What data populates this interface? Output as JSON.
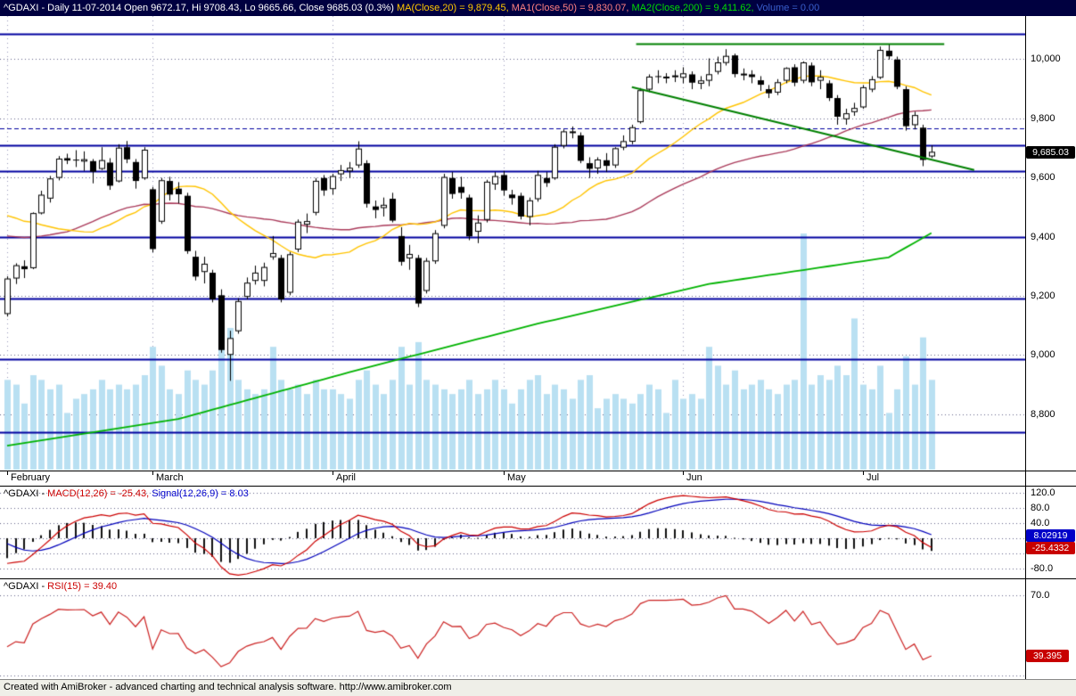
{
  "title_bar": {
    "quote": "^GDAXI - Daily 11-07-2014 Open 9672.17, Hi 9708.43, Lo 9665.66, Close 9685.03 (0.3%) ",
    "ma20": "MA(Close,20) = 9,879.45, ",
    "ma50": "MA1(Close,50) = 9,830.07, ",
    "ma200": "MA2(Close,200) = 9,411.62, ",
    "volume": "Volume = 0.00"
  },
  "title_colors": {
    "bg": "#000040",
    "quote": "#FFFFFF",
    "ma20": "#FFC800",
    "ma50": "#FF8080",
    "ma200": "#00DD00",
    "volume": "#3A5FCD"
  },
  "colors": {
    "up_candle": "#FFFFFF",
    "down_candle": "#000000",
    "ma20": "#FFC400",
    "ma50": "#AA3A5A",
    "ma200": "#00B300",
    "volume": "#B9E0F2",
    "sr_line": "#0000A0",
    "trendline": "#008000",
    "macd_line": "#CC0000",
    "signal_line": "#0000BB",
    "rsi_line": "#CC2222",
    "histogram": "#111111",
    "grid_dot": "#666688"
  },
  "macd_pane": {
    "title_sym": "^GDAXI - ",
    "title_macd": "MACD(12,26) = -25.43, ",
    "title_signal": "Signal(12,26,9) = 8.03",
    "badge_signal": "8.02919",
    "badge_macd": "-25.4332"
  },
  "rsi_pane": {
    "title_sym": "^GDAXI - ",
    "title_rsi": "RSI(15) = 39.40",
    "badge": "39.395"
  },
  "price_badge": "9,685.03",
  "status_bar": {
    "text": "Created with AmiBroker - advanced charting and technical analysis software. http://www.amibroker.com"
  },
  "chart_data": {
    "type": "candlestick",
    "symbol": "^GDAXI",
    "interval": "Daily",
    "date": "11-07-2014",
    "last": {
      "open": 9672.17,
      "high": 9708.43,
      "low": 9665.66,
      "close": 9685.03,
      "change_pct": 0.3
    },
    "main_range": [
      10145,
      8610
    ],
    "y_axis_ticks": [
      [
        10000,
        "10,000"
      ],
      [
        9800,
        "9,800"
      ],
      [
        9600,
        "9,600"
      ],
      [
        9400,
        "9,400"
      ],
      [
        9200,
        "9,200"
      ],
      [
        9000,
        "9,000"
      ],
      [
        8800,
        "8,800"
      ]
    ],
    "x_axis_labels": [
      "February",
      "March",
      "April",
      "May",
      "Jun",
      "Jul"
    ],
    "support_resistance": [
      10085,
      9710,
      9620,
      9400,
      9190,
      8985,
      8740
    ],
    "dashed_level": 9765,
    "trendlines": [
      {
        "type": "horizontal",
        "price": 10052,
        "from": 73.5,
        "to": 109.5
      },
      {
        "type": "descending",
        "p1": [
          73,
          9905
        ],
        "p2": [
          113,
          9625
        ]
      }
    ],
    "overlays": {
      "ma20_period": 20,
      "ma50_period": 50,
      "ma200_points": [
        [
          0,
          8694
        ],
        [
          20,
          8784
        ],
        [
          41,
          8950
        ],
        [
          62,
          9106
        ],
        [
          82,
          9240
        ],
        [
          103,
          9330
        ],
        [
          108,
          9412
        ]
      ]
    },
    "macd": {
      "fast": 12,
      "slow": 26,
      "signal": 9,
      "value": -25.4332,
      "signal_value": 8.02919,
      "range": [
        136,
        -108
      ],
      "grid_values": [
        120,
        80,
        40,
        0,
        -40,
        -80
      ],
      "ticks": [
        [
          120,
          "120.0"
        ],
        [
          80,
          "80.0"
        ],
        [
          40,
          "40.0"
        ],
        [
          -80,
          "-80.0"
        ]
      ]
    },
    "rsi": {
      "period": 15,
      "value": 39.395,
      "range": [
        78,
        28
      ],
      "grid_values": [
        70,
        30
      ],
      "ticks": [
        [
          70,
          "70.0"
        ]
      ]
    },
    "prefix_closes": [
      9114,
      9077,
      9017,
      8962,
      9018,
      9085,
      9182,
      9336,
      9362,
      9400,
      9411,
      9489,
      9589,
      9594,
      9552,
      9400,
      9435,
      9428,
      9506,
      9498,
      9473,
      9421,
      9510,
      9473,
      9506,
      9540,
      9715,
      9733,
      9794,
      9730,
      9731,
      9721,
      9631,
      9392,
      9349,
      9407,
      9337,
      9373,
      9306,
      9186,
      9127,
      9116
    ],
    "bars": [
      [
        "2014-02-06",
        9140,
        9266,
        9130,
        9257,
        95
      ],
      [
        "2014-02-07",
        9260,
        9310,
        9240,
        9302,
        90
      ],
      [
        "2014-02-10",
        9300,
        9320,
        9260,
        9290,
        70
      ],
      [
        "2014-02-11",
        9295,
        9482,
        9290,
        9478,
        100
      ],
      [
        "2014-02-12",
        9480,
        9555,
        9475,
        9540,
        95
      ],
      [
        "2014-02-13",
        9530,
        9605,
        9515,
        9595,
        85
      ],
      [
        "2014-02-14",
        9600,
        9672,
        9590,
        9662,
        90
      ],
      [
        "2014-02-17",
        9665,
        9680,
        9645,
        9657,
        60
      ],
      [
        "2014-02-18",
        9660,
        9692,
        9635,
        9659,
        75
      ],
      [
        "2014-02-19",
        9655,
        9688,
        9622,
        9660,
        80
      ],
      [
        "2014-02-20",
        9655,
        9662,
        9580,
        9619,
        85
      ],
      [
        "2014-02-21",
        9630,
        9702,
        9625,
        9657,
        95
      ],
      [
        "2014-02-24",
        9650,
        9665,
        9558,
        9572,
        85
      ],
      [
        "2014-02-25",
        9588,
        9712,
        9583,
        9699,
        90
      ],
      [
        "2014-02-26",
        9702,
        9723,
        9648,
        9661,
        85
      ],
      [
        "2014-02-27",
        9652,
        9662,
        9562,
        9588,
        90
      ],
      [
        "2014-02-28",
        9598,
        9702,
        9592,
        9692,
        100
      ],
      [
        "2014-03-03",
        9560,
        9568,
        9347,
        9358,
        130
      ],
      [
        "2014-03-04",
        9452,
        9598,
        9443,
        9589,
        110
      ],
      [
        "2014-03-05",
        9588,
        9602,
        9522,
        9542,
        85
      ],
      [
        "2014-03-06",
        9562,
        9584,
        9512,
        9543,
        80
      ],
      [
        "2014-03-07",
        9538,
        9548,
        9342,
        9351,
        105
      ],
      [
        "2014-03-10",
        9332,
        9352,
        9252,
        9265,
        95
      ],
      [
        "2014-03-11",
        9282,
        9332,
        9242,
        9307,
        90
      ],
      [
        "2014-03-12",
        9278,
        9288,
        9178,
        9188,
        105
      ],
      [
        "2014-03-13",
        9202,
        9222,
        9008,
        9017,
        140
      ],
      [
        "2014-03-14",
        9002,
        9082,
        8913,
        9056,
        150
      ],
      [
        "2014-03-17",
        9082,
        9192,
        9072,
        9181,
        95
      ],
      [
        "2014-03-18",
        9198,
        9262,
        9188,
        9243,
        85
      ],
      [
        "2014-03-19",
        9252,
        9302,
        9238,
        9277,
        80
      ],
      [
        "2014-03-20",
        9252,
        9312,
        9232,
        9296,
        85
      ],
      [
        "2014-03-21",
        9332,
        9402,
        9322,
        9343,
        130
      ],
      [
        "2014-03-24",
        9328,
        9338,
        9178,
        9188,
        95
      ],
      [
        "2014-03-25",
        9212,
        9348,
        9202,
        9339,
        85
      ],
      [
        "2014-03-26",
        9358,
        9458,
        9348,
        9449,
        90
      ],
      [
        "2014-03-27",
        9442,
        9478,
        9412,
        9451,
        80
      ],
      [
        "2014-03-28",
        9482,
        9598,
        9472,
        9587,
        95
      ],
      [
        "2014-03-31",
        9598,
        9608,
        9538,
        9556,
        85
      ],
      [
        "2014-04-01",
        9562,
        9612,
        9542,
        9603,
        85
      ],
      [
        "2014-04-02",
        9612,
        9642,
        9588,
        9623,
        80
      ],
      [
        "2014-04-03",
        9622,
        9652,
        9598,
        9631,
        75
      ],
      [
        "2014-04-04",
        9642,
        9722,
        9632,
        9696,
        95
      ],
      [
        "2014-04-07",
        9648,
        9658,
        9498,
        9511,
        105
      ],
      [
        "2014-04-08",
        9502,
        9522,
        9462,
        9490,
        90
      ],
      [
        "2014-04-09",
        9498,
        9532,
        9468,
        9506,
        80
      ],
      [
        "2014-04-10",
        9528,
        9548,
        9448,
        9454,
        95
      ],
      [
        "2014-04-11",
        9402,
        9432,
        9302,
        9315,
        130
      ],
      [
        "2014-04-14",
        9328,
        9372,
        9288,
        9340,
        90
      ],
      [
        "2014-04-15",
        9328,
        9338,
        9162,
        9174,
        135
      ],
      [
        "2014-04-16",
        9218,
        9328,
        9208,
        9317,
        95
      ],
      [
        "2014-04-17",
        9318,
        9422,
        9308,
        9410,
        90
      ],
      [
        "2014-04-22",
        9438,
        9612,
        9428,
        9600,
        85
      ],
      [
        "2014-04-23",
        9598,
        9618,
        9528,
        9544,
        80
      ],
      [
        "2014-04-24",
        9568,
        9602,
        9528,
        9548,
        85
      ],
      [
        "2014-04-25",
        9532,
        9542,
        9388,
        9401,
        95
      ],
      [
        "2014-04-28",
        9418,
        9472,
        9378,
        9446,
        80
      ],
      [
        "2014-04-29",
        9458,
        9592,
        9448,
        9584,
        85
      ],
      [
        "2014-04-30",
        9578,
        9618,
        9558,
        9603,
        95
      ],
      [
        "2014-05-02",
        9608,
        9622,
        9538,
        9556,
        85
      ],
      [
        "2014-05-05",
        9542,
        9558,
        9508,
        9530,
        70
      ],
      [
        "2014-05-06",
        9538,
        9548,
        9458,
        9468,
        85
      ],
      [
        "2014-05-07",
        9468,
        9532,
        9438,
        9521,
        95
      ],
      [
        "2014-05-08",
        9528,
        9622,
        9518,
        9607,
        100
      ],
      [
        "2014-05-09",
        9598,
        9618,
        9568,
        9581,
        80
      ],
      [
        "2014-05-12",
        9598,
        9712,
        9592,
        9702,
        90
      ],
      [
        "2014-05-13",
        9708,
        9762,
        9698,
        9754,
        85
      ],
      [
        "2014-05-14",
        9752,
        9772,
        9732,
        9754,
        75
      ],
      [
        "2014-05-15",
        9742,
        9752,
        9648,
        9656,
        95
      ],
      [
        "2014-05-16",
        9648,
        9668,
        9598,
        9629,
        100
      ],
      [
        "2014-05-19",
        9632,
        9668,
        9612,
        9659,
        65
      ],
      [
        "2014-05-20",
        9658,
        9682,
        9618,
        9639,
        75
      ],
      [
        "2014-05-21",
        9642,
        9702,
        9632,
        9697,
        80
      ],
      [
        "2014-05-22",
        9702,
        9742,
        9692,
        9721,
        75
      ],
      [
        "2014-05-23",
        9722,
        9778,
        9712,
        9768,
        70
      ],
      [
        "2014-05-26",
        9788,
        9902,
        9782,
        9893,
        80
      ],
      [
        "2014-05-27",
        9898,
        9948,
        9888,
        9939,
        90
      ],
      [
        "2014-05-28",
        9942,
        9962,
        9918,
        9939,
        85
      ],
      [
        "2014-05-29",
        9938,
        9952,
        9918,
        9939,
        60
      ],
      [
        "2014-05-30",
        9942,
        9962,
        9922,
        9943,
        95
      ],
      [
        "2014-06-02",
        9938,
        9972,
        9918,
        9950,
        75
      ],
      [
        "2014-06-03",
        9948,
        9958,
        9898,
        9920,
        80
      ],
      [
        "2014-06-04",
        9918,
        9942,
        9898,
        9926,
        75
      ],
      [
        "2014-06-05",
        9928,
        10002,
        9908,
        9947,
        130
      ],
      [
        "2014-06-06",
        9958,
        10008,
        9948,
        9987,
        110
      ],
      [
        "2014-06-09",
        9988,
        10033,
        9978,
        10009,
        90
      ],
      [
        "2014-06-10",
        10012,
        10018,
        9938,
        9949,
        105
      ],
      [
        "2014-06-11",
        9948,
        9968,
        9928,
        9949,
        85
      ],
      [
        "2014-06-12",
        9948,
        9962,
        9918,
        9939,
        90
      ],
      [
        "2014-06-13",
        9928,
        9942,
        9892,
        9913,
        95
      ],
      [
        "2014-06-16",
        9898,
        9912,
        9868,
        9884,
        85
      ],
      [
        "2014-06-17",
        9888,
        9932,
        9878,
        9920,
        80
      ],
      [
        "2014-06-18",
        9928,
        9972,
        9918,
        9968,
        90
      ],
      [
        "2014-06-19",
        9972,
        9982,
        9908,
        9920,
        95
      ],
      [
        "2014-06-20",
        9928,
        9992,
        9918,
        9987,
        250
      ],
      [
        "2014-06-23",
        9978,
        9988,
        9908,
        9921,
        90
      ],
      [
        "2014-06-24",
        9928,
        9962,
        9898,
        9938,
        100
      ],
      [
        "2014-06-25",
        9918,
        9928,
        9858,
        9868,
        95
      ],
      [
        "2014-06-26",
        9868,
        9878,
        9778,
        9805,
        110
      ],
      [
        "2014-06-27",
        9798,
        9832,
        9778,
        9815,
        100
      ],
      [
        "2014-06-30",
        9822,
        9852,
        9808,
        9833,
        160
      ],
      [
        "2014-07-01",
        9838,
        9912,
        9832,
        9903,
        90
      ],
      [
        "2014-07-02",
        9898,
        9942,
        9888,
        9930,
        85
      ],
      [
        "2014-07-03",
        9938,
        10042,
        9932,
        10029,
        110
      ],
      [
        "2014-07-04",
        10028,
        10051,
        9998,
        10009,
        60
      ],
      [
        "2014-07-07",
        9998,
        10008,
        9898,
        9906,
        85
      ],
      [
        "2014-07-08",
        9898,
        9908,
        9758,
        9773,
        120
      ],
      [
        "2014-07-09",
        9778,
        9822,
        9762,
        9809,
        90
      ],
      [
        "2014-07-10",
        9768,
        9778,
        9638,
        9659,
        140
      ],
      [
        "2014-07-11",
        9672.17,
        9708.43,
        9665.66,
        9685.03,
        95
      ]
    ]
  }
}
